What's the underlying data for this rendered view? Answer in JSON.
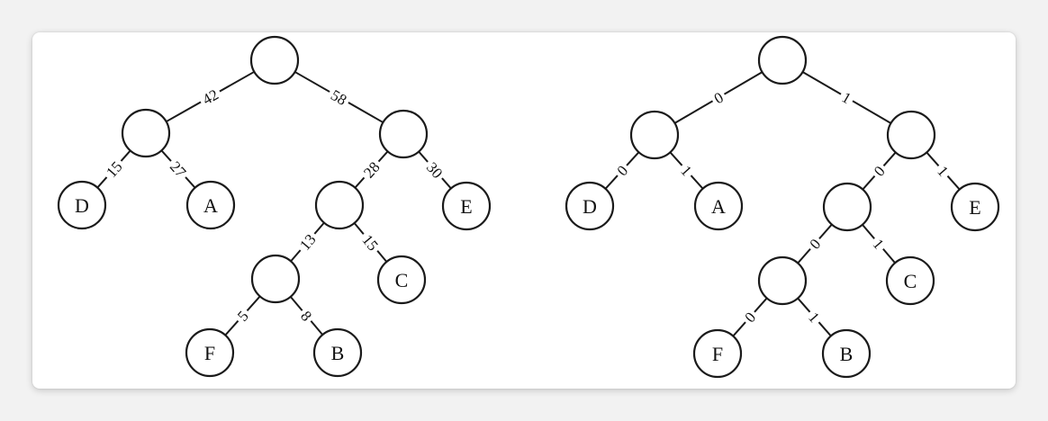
{
  "trees": [
    {
      "id": "weighted-tree",
      "nodes": [
        {
          "id": "root",
          "label": ""
        },
        {
          "id": "n42",
          "label": ""
        },
        {
          "id": "n58",
          "label": ""
        },
        {
          "id": "D",
          "label": "D"
        },
        {
          "id": "A",
          "label": "A"
        },
        {
          "id": "n28",
          "label": ""
        },
        {
          "id": "E",
          "label": "E"
        },
        {
          "id": "n13",
          "label": ""
        },
        {
          "id": "C",
          "label": "C"
        },
        {
          "id": "F",
          "label": "F"
        },
        {
          "id": "B",
          "label": "B"
        }
      ],
      "edges": [
        {
          "from": "root",
          "to": "n42",
          "label": "42"
        },
        {
          "from": "root",
          "to": "n58",
          "label": "58"
        },
        {
          "from": "n42",
          "to": "D",
          "label": "15"
        },
        {
          "from": "n42",
          "to": "A",
          "label": "27"
        },
        {
          "from": "n58",
          "to": "n28",
          "label": "28"
        },
        {
          "from": "n58",
          "to": "E",
          "label": "30"
        },
        {
          "from": "n28",
          "to": "n13",
          "label": "13"
        },
        {
          "from": "n28",
          "to": "C",
          "label": "15"
        },
        {
          "from": "n13",
          "to": "F",
          "label": "5"
        },
        {
          "from": "n13",
          "to": "B",
          "label": "8"
        }
      ]
    },
    {
      "id": "binary-code-tree",
      "nodes": [
        {
          "id": "root",
          "label": ""
        },
        {
          "id": "n42",
          "label": ""
        },
        {
          "id": "n58",
          "label": ""
        },
        {
          "id": "D",
          "label": "D"
        },
        {
          "id": "A",
          "label": "A"
        },
        {
          "id": "n28",
          "label": ""
        },
        {
          "id": "E",
          "label": "E"
        },
        {
          "id": "n13",
          "label": ""
        },
        {
          "id": "C",
          "label": "C"
        },
        {
          "id": "F",
          "label": "F"
        },
        {
          "id": "B",
          "label": "B"
        }
      ],
      "edges": [
        {
          "from": "root",
          "to": "n42",
          "label": "0"
        },
        {
          "from": "root",
          "to": "n58",
          "label": "1"
        },
        {
          "from": "n42",
          "to": "D",
          "label": "0"
        },
        {
          "from": "n42",
          "to": "A",
          "label": "1"
        },
        {
          "from": "n58",
          "to": "n28",
          "label": "0"
        },
        {
          "from": "n58",
          "to": "E",
          "label": "1"
        },
        {
          "from": "n28",
          "to": "n13",
          "label": "0"
        },
        {
          "from": "n28",
          "to": "C",
          "label": "1"
        },
        {
          "from": "n13",
          "to": "F",
          "label": "0"
        },
        {
          "from": "n13",
          "to": "B",
          "label": "1"
        }
      ]
    }
  ]
}
